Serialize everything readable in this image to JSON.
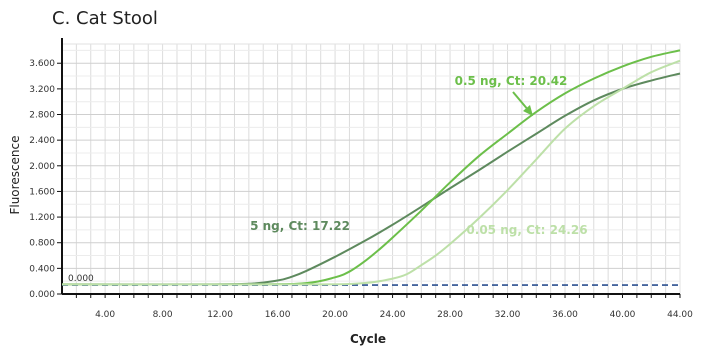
{
  "chart_data": {
    "type": "line",
    "title": "C. Cat Stool",
    "xlabel": "Cycle",
    "ylabel": "Fluorescence",
    "xlim": [
      1,
      44
    ],
    "ylim": [
      0,
      3.9
    ],
    "xticks": [
      4,
      8,
      12,
      16,
      20,
      24,
      28,
      32,
      36,
      40,
      44
    ],
    "xtick_labels": [
      "4.00",
      "8.00",
      "12.00",
      "16.00",
      "20.00",
      "24.00",
      "28.00",
      "32.00",
      "36.00",
      "40.00",
      "44.00"
    ],
    "yticks": [
      0,
      0.4,
      0.8,
      1.2,
      1.6,
      2.0,
      2.4,
      2.8,
      3.2,
      3.6
    ],
    "ytick_labels": [
      "0.000",
      "0.400",
      "0.800",
      "1.200",
      "1.600",
      "2.000",
      "2.400",
      "2.800",
      "3.200",
      "3.600"
    ],
    "grid": true,
    "threshold": {
      "value": 0.14,
      "label": "0.000",
      "color": "#2a4f8f"
    },
    "series": [
      {
        "name": "5 ng, Ct: 17.22",
        "color": "#5e8a5e",
        "x": [
          1,
          10,
          14,
          16,
          17,
          18,
          20,
          22,
          24,
          26,
          28,
          30,
          32,
          34,
          36,
          38,
          40,
          42,
          44
        ],
        "y": [
          0.15,
          0.15,
          0.16,
          0.21,
          0.27,
          0.36,
          0.58,
          0.82,
          1.08,
          1.36,
          1.65,
          1.93,
          2.22,
          2.5,
          2.78,
          3.02,
          3.2,
          3.33,
          3.44
        ]
      },
      {
        "name": "0.5 ng, Ct: 20.42",
        "color": "#6cbf4a",
        "x": [
          1,
          14,
          18,
          20,
          21,
          22,
          23,
          24,
          26,
          28,
          30,
          32,
          34,
          36,
          38,
          40,
          42,
          44
        ],
        "y": [
          0.15,
          0.15,
          0.17,
          0.26,
          0.35,
          0.5,
          0.68,
          0.88,
          1.3,
          1.74,
          2.15,
          2.5,
          2.84,
          3.13,
          3.36,
          3.55,
          3.7,
          3.8
        ]
      },
      {
        "name": "0.05 ng, Ct: 24.26",
        "color": "#bde0a8",
        "x": [
          1,
          18,
          22,
          24,
          25,
          26,
          27,
          28,
          30,
          32,
          34,
          36,
          38,
          40,
          42,
          44
        ],
        "y": [
          0.15,
          0.15,
          0.17,
          0.24,
          0.31,
          0.45,
          0.6,
          0.78,
          1.18,
          1.62,
          2.1,
          2.58,
          2.93,
          3.2,
          3.46,
          3.64
        ]
      }
    ],
    "annotations": [
      {
        "text": "5 ng, Ct: 17.22",
        "series": 0,
        "color": "#5e8a5e"
      },
      {
        "text": "0.5 ng, Ct: 20.42",
        "series": 1,
        "color": "#6cbf4a"
      },
      {
        "text": "0.05 ng, Ct: 24.26",
        "series": 2,
        "color": "#bde0a8"
      }
    ]
  }
}
